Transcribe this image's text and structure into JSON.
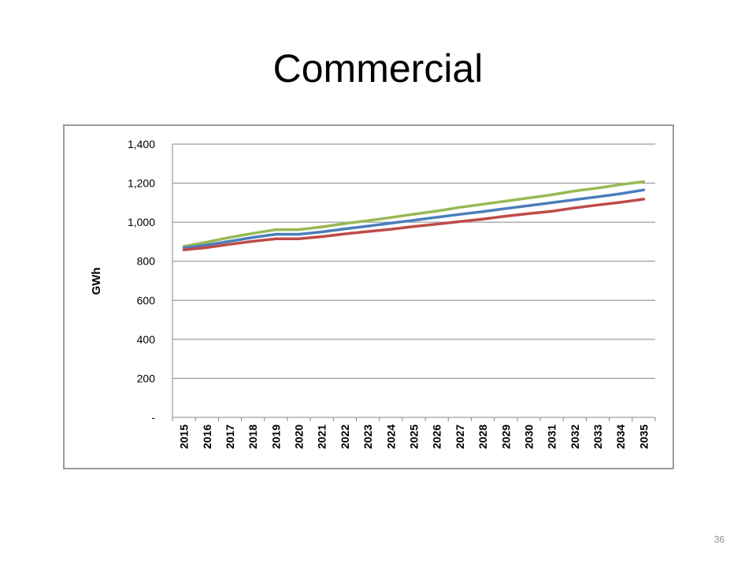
{
  "slide": {
    "title": "Commercial",
    "page_number": "36"
  },
  "colors": {
    "series_blue": "#4a7ebb",
    "series_red": "#be4b48",
    "series_green": "#98b954",
    "grid": "#868686",
    "frame_border": "#9a9a9a"
  },
  "chart_data": {
    "type": "line",
    "title": "",
    "xlabel": "",
    "ylabel": "GWh",
    "ylim": [
      0,
      1400
    ],
    "yticks": [
      0,
      200,
      400,
      600,
      800,
      1000,
      1200,
      1400
    ],
    "ytick_labels": [
      "-",
      "200",
      "400",
      "600",
      "800",
      "1,000",
      "1,200",
      "1,400"
    ],
    "grid": true,
    "legend": "none",
    "x": [
      "2015",
      "2016",
      "2017",
      "2018",
      "2019",
      "2020",
      "2021",
      "2022",
      "2023",
      "2024",
      "2025",
      "2026",
      "2027",
      "2028",
      "2029",
      "2030",
      "2031",
      "2032",
      "2033",
      "2034",
      "2035"
    ],
    "series": [
      {
        "color": "#98b954",
        "values": [
          876,
          898,
          922,
          943,
          962,
          962,
          976,
          993,
          1008,
          1024,
          1041,
          1057,
          1076,
          1092,
          1108,
          1124,
          1140,
          1160,
          1175,
          1193,
          1208
        ]
      },
      {
        "color": "#4a7ebb",
        "values": [
          868,
          883,
          902,
          922,
          938,
          938,
          950,
          966,
          980,
          995,
          1010,
          1025,
          1040,
          1054,
          1070,
          1085,
          1100,
          1115,
          1130,
          1146,
          1165
        ]
      },
      {
        "color": "#be4b48",
        "values": [
          858,
          870,
          887,
          902,
          915,
          915,
          926,
          940,
          952,
          964,
          978,
          990,
          1003,
          1016,
          1031,
          1044,
          1056,
          1073,
          1088,
          1102,
          1118
        ]
      }
    ]
  }
}
